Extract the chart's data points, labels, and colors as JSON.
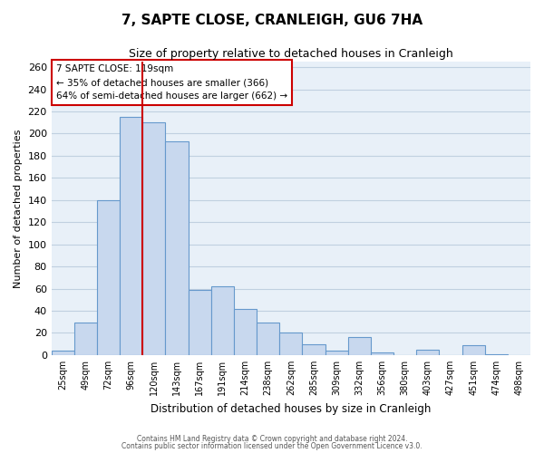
{
  "title": "7, SAPTE CLOSE, CRANLEIGH, GU6 7HA",
  "subtitle": "Size of property relative to detached houses in Cranleigh",
  "xlabel": "Distribution of detached houses by size in Cranleigh",
  "ylabel": "Number of detached properties",
  "bar_color": "#c8d8ee",
  "bar_edge_color": "#6699cc",
  "grid_color": "#c0d0e0",
  "bg_color": "#e8f0f8",
  "bin_labels": [
    "25sqm",
    "49sqm",
    "72sqm",
    "96sqm",
    "120sqm",
    "143sqm",
    "167sqm",
    "191sqm",
    "214sqm",
    "238sqm",
    "262sqm",
    "285sqm",
    "309sqm",
    "332sqm",
    "356sqm",
    "380sqm",
    "403sqm",
    "427sqm",
    "451sqm",
    "474sqm",
    "498sqm"
  ],
  "bar_heights": [
    4,
    29,
    140,
    215,
    210,
    193,
    59,
    62,
    42,
    29,
    20,
    10,
    4,
    16,
    2,
    0,
    5,
    0,
    9,
    1,
    0
  ],
  "vline_x": 3.5,
  "vline_color": "#cc0000",
  "annotation_text": "7 SAPTE CLOSE: 119sqm\n← 35% of detached houses are smaller (366)\n64% of semi-detached houses are larger (662) →",
  "annotation_box_color": "#ffffff",
  "annotation_box_edge": "#cc0000",
  "ylim": [
    0,
    265
  ],
  "yticks": [
    0,
    20,
    40,
    60,
    80,
    100,
    120,
    140,
    160,
    180,
    200,
    220,
    240,
    260
  ],
  "footer1": "Contains HM Land Registry data © Crown copyright and database right 2024.",
  "footer2": "Contains public sector information licensed under the Open Government Licence v3.0."
}
